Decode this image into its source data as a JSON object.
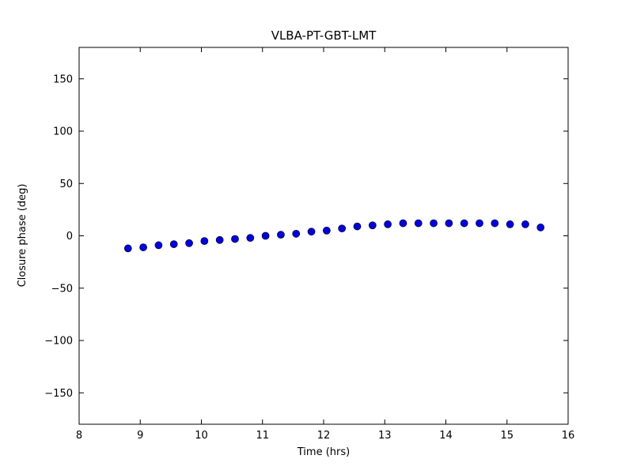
{
  "chart_data": {
    "type": "scatter",
    "title": "VLBA-PT-GBT-LMT",
    "xlabel": "Time (hrs)",
    "ylabel": "Closure phase (deg)",
    "xlim": [
      8,
      16
    ],
    "ylim": [
      -180,
      180
    ],
    "xticks": [
      8,
      9,
      10,
      11,
      12,
      13,
      14,
      15,
      16
    ],
    "yticks": [
      -150,
      -100,
      -50,
      0,
      50,
      100,
      150
    ],
    "grid": false,
    "legend": "none",
    "marker": "circle",
    "marker_color": "#0000dd",
    "marker_edge_color": "#000033",
    "x": [
      8.8,
      9.05,
      9.3,
      9.55,
      9.8,
      10.05,
      10.3,
      10.55,
      10.8,
      11.05,
      11.3,
      11.55,
      11.8,
      12.05,
      12.3,
      12.55,
      12.8,
      13.05,
      13.3,
      13.55,
      13.8,
      14.05,
      14.3,
      14.55,
      14.8,
      15.05,
      15.3,
      15.55
    ],
    "y": [
      -12,
      -11,
      -9,
      -8,
      -7,
      -5,
      -4,
      -3,
      -2,
      0,
      1,
      2,
      4,
      5,
      7,
      9,
      10,
      11,
      12,
      12,
      12,
      12,
      12,
      12,
      12,
      11,
      11,
      8
    ]
  }
}
